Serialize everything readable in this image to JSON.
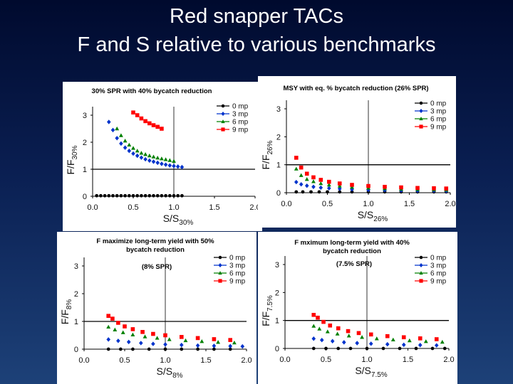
{
  "slide": {
    "title_line1": "Red snapper TACs",
    "title_line2": "F  and S relative to various benchmarks"
  },
  "chart_data": [
    {
      "type": "scatter",
      "title": "30% SPR with 40% bycatch reduction",
      "subtitle": "",
      "ylabel": "F/F",
      "ylabel_sub": "30%",
      "xlabel": "S/S",
      "xlabel_sub": "30%",
      "xlim": [
        0,
        2.0
      ],
      "ylim": [
        0,
        3
      ],
      "xticks": [
        "0.0",
        "0.5",
        "1.0",
        "1.5",
        "2.0"
      ],
      "yticks": [
        "0",
        "1",
        "2",
        "3"
      ],
      "legend": [
        "0 mp",
        "3 mp",
        "6 mp",
        "9 mp"
      ],
      "series": [
        {
          "name": "0 mp",
          "color": "#000000",
          "marker": "circle",
          "x": [
            0.05,
            0.1,
            0.15,
            0.2,
            0.25,
            0.3,
            0.35,
            0.4,
            0.45,
            0.5,
            0.55,
            0.6,
            0.65,
            0.7,
            0.75,
            0.8,
            0.85,
            0.9,
            0.95,
            1.0,
            1.05,
            1.1
          ],
          "y": [
            0.02,
            0.02,
            0.02,
            0.02,
            0.02,
            0.02,
            0.02,
            0.02,
            0.02,
            0.02,
            0.02,
            0.02,
            0.02,
            0.02,
            0.02,
            0.02,
            0.02,
            0.02,
            0.02,
            0.02,
            0.02,
            0.02
          ]
        },
        {
          "name": "3 mp",
          "color": "#0033cc",
          "marker": "diamond",
          "x": [
            0.2,
            0.25,
            0.3,
            0.35,
            0.4,
            0.45,
            0.5,
            0.55,
            0.6,
            0.65,
            0.7,
            0.75,
            0.8,
            0.85,
            0.9,
            0.95,
            1.0,
            1.05,
            1.1
          ],
          "y": [
            2.75,
            2.45,
            2.15,
            1.95,
            1.8,
            1.68,
            1.58,
            1.5,
            1.43,
            1.37,
            1.32,
            1.28,
            1.24,
            1.2,
            1.17,
            1.14,
            1.12,
            1.1,
            1.08
          ]
        },
        {
          "name": "6 mp",
          "color": "#008000",
          "marker": "triangle",
          "x": [
            0.3,
            0.35,
            0.4,
            0.45,
            0.5,
            0.55,
            0.6,
            0.65,
            0.7,
            0.75,
            0.8,
            0.85,
            0.9,
            0.95,
            1.0
          ],
          "y": [
            2.5,
            2.25,
            2.05,
            1.9,
            1.78,
            1.68,
            1.6,
            1.55,
            1.5,
            1.46,
            1.42,
            1.39,
            1.36,
            1.33,
            1.3
          ]
        },
        {
          "name": "9 mp",
          "color": "#ff0000",
          "marker": "square",
          "x": [
            0.5,
            0.55,
            0.6,
            0.65,
            0.7,
            0.75,
            0.8,
            0.85
          ],
          "y": [
            3.1,
            3.0,
            2.88,
            2.78,
            2.7,
            2.63,
            2.57,
            2.5
          ]
        }
      ]
    },
    {
      "type": "scatter",
      "title": "MSY with eq. % bycatch reduction (26% SPR)",
      "subtitle": "",
      "ylabel": "F/F",
      "ylabel_sub": "26%",
      "xlabel": "S/S",
      "xlabel_sub": "26%",
      "xlim": [
        0,
        2.0
      ],
      "ylim": [
        0,
        3
      ],
      "xticks": [
        "0.0",
        "0.5",
        "1.0",
        "1.5",
        "2.0"
      ],
      "yticks": [
        "0",
        "1",
        "2",
        "3"
      ],
      "legend": [
        "0 mp",
        "3 mp",
        "6 mp",
        "9 mp"
      ],
      "series": [
        {
          "name": "0 mp",
          "color": "#000000",
          "marker": "circle",
          "x": [
            0.12,
            0.2,
            0.3,
            0.4,
            0.5,
            0.65,
            0.8,
            1.0,
            1.2,
            1.4,
            1.6,
            1.8,
            1.95
          ],
          "y": [
            0.03,
            0.03,
            0.03,
            0.03,
            0.03,
            0.03,
            0.03,
            0.03,
            0.03,
            0.03,
            0.03,
            0.03,
            0.03
          ]
        },
        {
          "name": "3 mp",
          "color": "#0033cc",
          "marker": "diamond",
          "x": [
            0.12,
            0.18,
            0.25,
            0.33,
            0.42,
            0.52,
            0.65,
            0.8,
            1.0,
            1.2,
            1.4,
            1.6,
            1.8,
            1.95
          ],
          "y": [
            0.38,
            0.3,
            0.25,
            0.21,
            0.18,
            0.16,
            0.14,
            0.12,
            0.1,
            0.09,
            0.08,
            0.07,
            0.07,
            0.06
          ]
        },
        {
          "name": "6 mp",
          "color": "#008000",
          "marker": "triangle",
          "x": [
            0.12,
            0.18,
            0.25,
            0.33,
            0.42,
            0.52,
            0.65,
            0.8,
            1.0,
            1.2,
            1.4,
            1.6,
            1.8,
            1.95
          ],
          "y": [
            0.85,
            0.62,
            0.48,
            0.4,
            0.33,
            0.28,
            0.24,
            0.2,
            0.17,
            0.15,
            0.13,
            0.12,
            0.11,
            0.1
          ]
        },
        {
          "name": "9 mp",
          "color": "#ff0000",
          "marker": "square",
          "x": [
            0.12,
            0.18,
            0.25,
            0.33,
            0.42,
            0.52,
            0.65,
            0.8,
            1.0,
            1.2,
            1.4,
            1.6,
            1.8,
            1.95
          ],
          "y": [
            1.25,
            0.9,
            0.68,
            0.55,
            0.46,
            0.39,
            0.33,
            0.28,
            0.24,
            0.21,
            0.19,
            0.17,
            0.16,
            0.15
          ]
        }
      ]
    },
    {
      "type": "scatter",
      "title": "F maximize long-term yield with 50% bycatch reduction",
      "subtitle": "(8% SPR)",
      "ylabel": "F/F",
      "ylabel_sub": "8%",
      "xlabel": "S/S",
      "xlabel_sub": "8%",
      "xlim": [
        0,
        2.0
      ],
      "ylim": [
        0,
        3
      ],
      "xticks": [
        "0.0",
        "0.5",
        "1.0",
        "1.5",
        "2.0"
      ],
      "yticks": [
        "0",
        "1",
        "2",
        "3"
      ],
      "legend": [
        "0 mp",
        "3 mp",
        "6 mp",
        "9 mp"
      ],
      "series": [
        {
          "name": "0 mp",
          "color": "#000000",
          "marker": "circle",
          "x": [
            0.3,
            0.45,
            0.6,
            0.8,
            1.0,
            1.2,
            1.4,
            1.6,
            1.8
          ],
          "y": [
            0.0,
            0.0,
            0.0,
            0.0,
            0.0,
            0.0,
            0.0,
            0.0,
            0.0
          ]
        },
        {
          "name": "3 mp",
          "color": "#0033cc",
          "marker": "diamond",
          "x": [
            0.3,
            0.42,
            0.55,
            0.7,
            0.85,
            1.0,
            1.2,
            1.4,
            1.6,
            1.8,
            1.95
          ],
          "y": [
            0.35,
            0.3,
            0.26,
            0.22,
            0.19,
            0.17,
            0.15,
            0.13,
            0.12,
            0.11,
            0.1
          ]
        },
        {
          "name": "6 mp",
          "color": "#008000",
          "marker": "triangle",
          "x": [
            0.3,
            0.38,
            0.48,
            0.6,
            0.75,
            0.9,
            1.05,
            1.25,
            1.45,
            1.65,
            1.85
          ],
          "y": [
            0.8,
            0.7,
            0.6,
            0.52,
            0.45,
            0.4,
            0.35,
            0.31,
            0.28,
            0.25,
            0.23
          ]
        },
        {
          "name": "9 mp",
          "color": "#ff0000",
          "marker": "square",
          "x": [
            0.3,
            0.35,
            0.42,
            0.5,
            0.6,
            0.72,
            0.85,
            1.0,
            1.2,
            1.4,
            1.6,
            1.8
          ],
          "y": [
            1.2,
            1.1,
            0.95,
            0.82,
            0.72,
            0.62,
            0.55,
            0.5,
            0.44,
            0.4,
            0.36,
            0.33
          ]
        }
      ]
    },
    {
      "type": "scatter",
      "title": "F mximum long-term yield with 40% bycatch reduction",
      "subtitle": "(7.5% SPR)",
      "ylabel": "F/F",
      "ylabel_sub": "7.5%",
      "xlabel": "S/S",
      "xlabel_sub": "7.5%",
      "xlim": [
        0,
        2.0
      ],
      "ylim": [
        0,
        3
      ],
      "xticks": [
        "0.0",
        "0.5",
        "1.0",
        "1.5",
        "2.0"
      ],
      "yticks": [
        "0",
        "1",
        "2",
        "3"
      ],
      "legend": [
        "0 mp",
        "3 mp",
        "6 mp",
        "9 mp"
      ],
      "series": [
        {
          "name": "0 mp",
          "color": "#000000",
          "marker": "circle",
          "x": [
            0.35,
            0.5,
            0.65,
            0.8,
            1.0,
            1.2,
            1.4,
            1.6,
            1.8,
            1.95
          ],
          "y": [
            0.0,
            0.0,
            0.0,
            0.0,
            0.0,
            0.0,
            0.0,
            0.0,
            0.0,
            0.0
          ]
        },
        {
          "name": "3 mp",
          "color": "#0033cc",
          "marker": "diamond",
          "x": [
            0.35,
            0.45,
            0.58,
            0.72,
            0.88,
            1.05,
            1.25,
            1.45,
            1.65,
            1.85
          ],
          "y": [
            0.35,
            0.3,
            0.26,
            0.22,
            0.19,
            0.17,
            0.15,
            0.13,
            0.12,
            0.11
          ]
        },
        {
          "name": "6 mp",
          "color": "#008000",
          "marker": "triangle",
          "x": [
            0.35,
            0.42,
            0.52,
            0.64,
            0.78,
            0.94,
            1.12,
            1.32,
            1.52,
            1.72,
            1.92
          ],
          "y": [
            0.8,
            0.7,
            0.6,
            0.52,
            0.45,
            0.4,
            0.35,
            0.31,
            0.28,
            0.25,
            0.23
          ]
        },
        {
          "name": "9 mp",
          "color": "#ff0000",
          "marker": "square",
          "x": [
            0.35,
            0.4,
            0.47,
            0.55,
            0.65,
            0.77,
            0.9,
            1.05,
            1.25,
            1.45,
            1.65,
            1.85
          ],
          "y": [
            1.2,
            1.1,
            0.95,
            0.82,
            0.72,
            0.62,
            0.55,
            0.5,
            0.44,
            0.4,
            0.36,
            0.33
          ]
        }
      ]
    }
  ]
}
